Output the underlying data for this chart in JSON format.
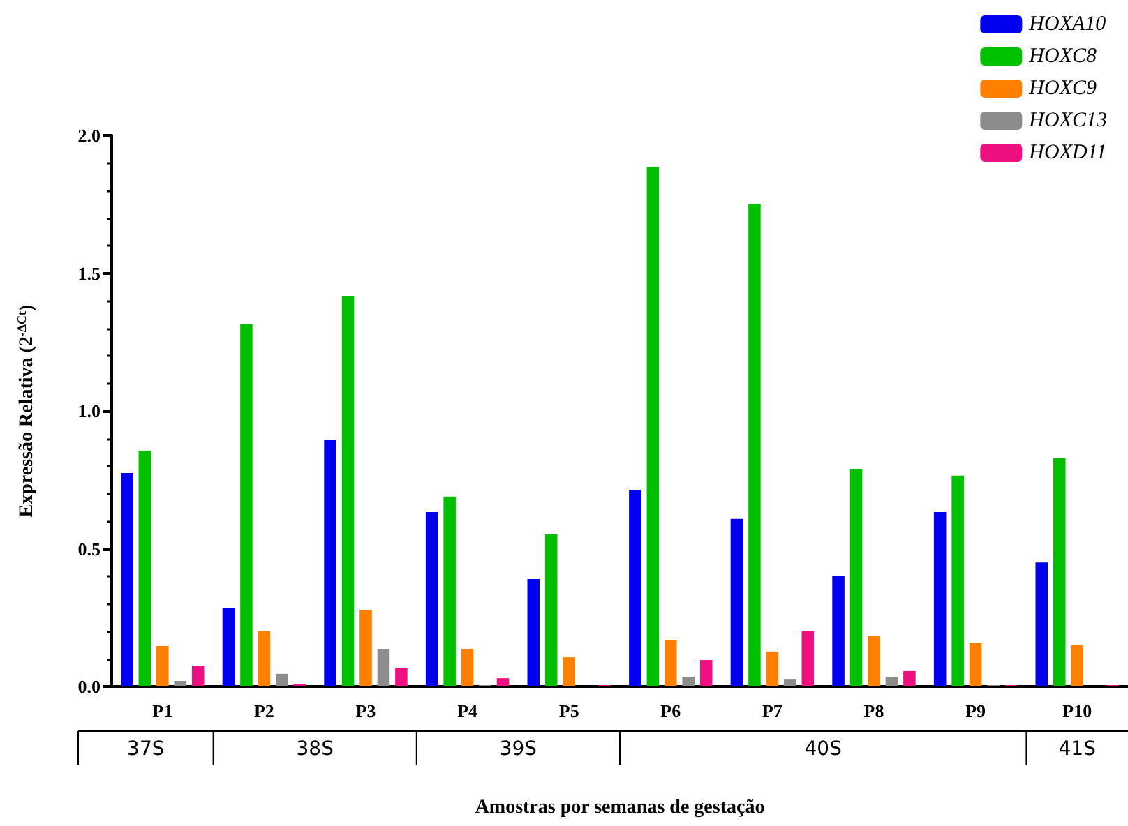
{
  "chart_data": {
    "type": "bar",
    "xlabel": "Amostras por semanas de gestação",
    "ylabel": "Expressão Relativa (2$^{-ΔCt}$)",
    "categories": [
      "P1",
      "P2",
      "P3",
      "P4",
      "P5",
      "P6",
      "P7",
      "P8",
      "P9",
      "P10"
    ],
    "series": [
      {
        "name": "HOXA10",
        "color": "#0000ee",
        "values": [
          0.775,
          0.284,
          0.896,
          0.633,
          0.39,
          0.714,
          0.608,
          0.4,
          0.633,
          0.45
        ]
      },
      {
        "name": "HOXC8",
        "color": "#00c000",
        "values": [
          0.855,
          1.316,
          1.418,
          0.689,
          0.552,
          1.884,
          1.752,
          0.79,
          0.765,
          0.83
        ]
      },
      {
        "name": "HOXC9",
        "color": "#ff8000",
        "values": [
          0.147,
          0.2,
          0.278,
          0.137,
          0.106,
          0.167,
          0.127,
          0.182,
          0.157,
          0.15
        ]
      },
      {
        "name": "HOXC13",
        "color": "#8c8c8c",
        "values": [
          0.02,
          0.046,
          0.137,
          0.005,
          0,
          0.035,
          0.025,
          0.035,
          0.005,
          0
        ]
      },
      {
        "name": "HOXD11",
        "color": "#ee1080",
        "values": [
          0.076,
          0.01,
          0.066,
          0.03,
          0.005,
          0.096,
          0.2,
          0.056,
          0.005,
          0.005
        ]
      }
    ],
    "annotations": [
      "37S",
      "38S",
      "39S",
      "40S",
      "41S"
    ],
    "ylim": [
      0,
      2
    ],
    "yticks": [
      {
        "value": 0,
        "label": "0.0"
      },
      0.5,
      {
        "value": 1,
        "label": "1.0"
      },
      1.5,
      {
        "value": 2,
        "label": "2.0"
      }
    ],
    "grid": false,
    "legend": "top right"
  }
}
